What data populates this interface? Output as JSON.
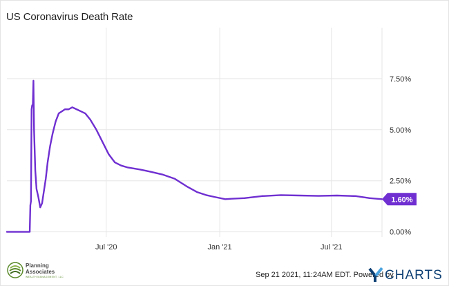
{
  "title": "US Coronavirus Death Rate",
  "footer": {
    "timestamp_text": "Sep 21 2021, 11:24AM EDT.  Powered by",
    "brand_right": "CHARTS",
    "brand_left_line1": "Planning",
    "brand_left_line2": "Associates",
    "brand_left_tagline": "WEALTH MANAGEMENT, LLC"
  },
  "colors": {
    "line": "#6f2fd1",
    "grid": "#e6e6e6",
    "axis_text": "#333333",
    "label_bg": "#6f2fd1",
    "ycharts_blue": "#0d3f73",
    "logo_green": "#5a8a2a"
  },
  "chart_data": {
    "type": "line",
    "title": "US Coronavirus Death Rate",
    "xlabel": "",
    "ylabel": "",
    "y_unit": "%",
    "ylim": [
      -0.25,
      10.0
    ],
    "xlim": [
      "2020-01-22",
      "2021-09-21"
    ],
    "x_ticks": [
      {
        "date": "2020-07-01",
        "label": "Jul '20"
      },
      {
        "date": "2021-01-01",
        "label": "Jan '21"
      },
      {
        "date": "2021-07-01",
        "label": "Jul '21"
      }
    ],
    "y_ticks": [
      {
        "value": 0.0,
        "label": "0.00%"
      },
      {
        "value": 2.5,
        "label": "2.50%"
      },
      {
        "value": 5.0,
        "label": "5.00%"
      },
      {
        "value": 7.5,
        "label": "7.50%"
      }
    ],
    "last_value_label": "1.60%",
    "grid": true,
    "series": [
      {
        "x": [
          "2020-01-22",
          "2020-02-28",
          "2020-02-29",
          "2020-03-01",
          "2020-03-02",
          "2020-03-03",
          "2020-03-04",
          "2020-03-05",
          "2020-03-06",
          "2020-03-08",
          "2020-03-10",
          "2020-03-13",
          "2020-03-16",
          "2020-03-19",
          "2020-03-22",
          "2020-03-25",
          "2020-03-28",
          "2020-04-01",
          "2020-04-05",
          "2020-04-10",
          "2020-04-15",
          "2020-04-20",
          "2020-04-25",
          "2020-05-01",
          "2020-05-07",
          "2020-05-14",
          "2020-05-21",
          "2020-05-28",
          "2020-06-05",
          "2020-06-15",
          "2020-06-25",
          "2020-07-05",
          "2020-07-15",
          "2020-07-25",
          "2020-08-05",
          "2020-08-15",
          "2020-08-25",
          "2020-09-10",
          "2020-10-01",
          "2020-10-20",
          "2020-11-10",
          "2020-11-25",
          "2020-12-10",
          "2020-12-25",
          "2021-01-10",
          "2021-01-20",
          "2021-02-10",
          "2021-03-10",
          "2021-04-10",
          "2021-05-10",
          "2021-06-10",
          "2021-07-10",
          "2021-08-10",
          "2021-09-01",
          "2021-09-21"
        ],
        "values": [
          0.0,
          0.0,
          1.3,
          1.5,
          6.0,
          6.2,
          6.2,
          7.4,
          5.0,
          3.0,
          2.1,
          1.7,
          1.2,
          1.4,
          2.0,
          2.6,
          3.4,
          4.2,
          4.8,
          5.4,
          5.8,
          5.9,
          6.0,
          6.0,
          6.1,
          6.0,
          5.9,
          5.8,
          5.5,
          5.0,
          4.4,
          3.8,
          3.4,
          3.25,
          3.15,
          3.1,
          3.05,
          2.95,
          2.8,
          2.6,
          2.2,
          1.95,
          1.8,
          1.7,
          1.6,
          1.62,
          1.65,
          1.75,
          1.8,
          1.78,
          1.76,
          1.78,
          1.75,
          1.65,
          1.6
        ]
      }
    ]
  }
}
